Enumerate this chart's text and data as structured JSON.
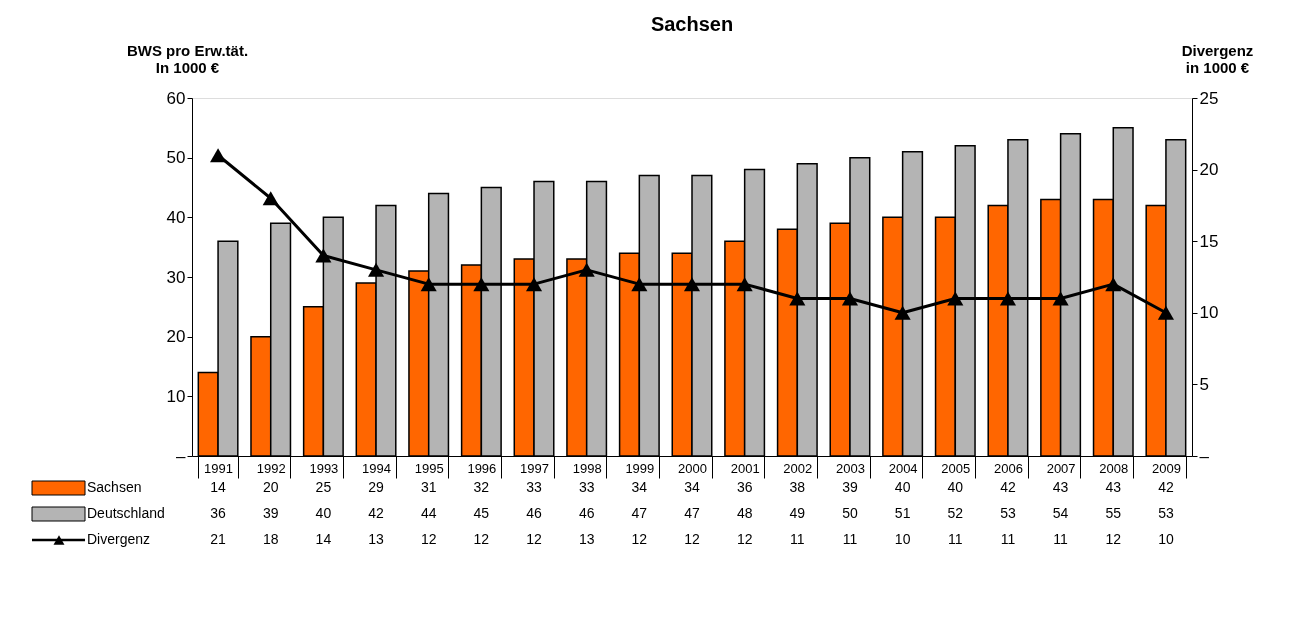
{
  "chart_data": {
    "type": "bar",
    "title": "Sachsen",
    "ylabel": "BWS pro Erw.tät.\nIn 1000 €",
    "y2label": "Divergenz\nin 1000 €",
    "categories": [
      "1991",
      "1992",
      "1993",
      "1994",
      "1995",
      "1996",
      "1997",
      "1998",
      "1999",
      "2000",
      "2001",
      "2002",
      "2003",
      "2004",
      "2005",
      "2006",
      "2007",
      "2008",
      "2009"
    ],
    "series": [
      {
        "name": "Sachsen",
        "color": "#ff6600",
        "values": [
          14,
          20,
          25,
          29,
          31,
          32,
          33,
          33,
          34,
          34,
          36,
          38,
          39,
          40,
          40,
          42,
          43,
          43,
          42
        ]
      },
      {
        "name": "Deutschland",
        "color": "#b4b4b4",
        "values": [
          36,
          39,
          40,
          42,
          44,
          45,
          46,
          46,
          47,
          47,
          48,
          49,
          50,
          51,
          52,
          53,
          54,
          55,
          53
        ]
      },
      {
        "name": "Divergenz",
        "type": "line",
        "axis": "y2",
        "color": "#000000",
        "marker": "triangle",
        "line_style": "solid",
        "values": [
          21,
          18,
          14,
          13,
          12,
          12,
          12,
          13,
          12,
          12,
          12,
          11,
          11,
          10,
          11,
          11,
          11,
          12,
          10
        ]
      }
    ],
    "data_labels": true,
    "ylim": [
      0,
      60
    ],
    "yticks": [
      {
        "value": 0,
        "label": "–"
      },
      10,
      20,
      30,
      40,
      50,
      60
    ],
    "y2lim": [
      0,
      25
    ],
    "y2ticks": [
      {
        "value": 0,
        "label": "–"
      },
      5,
      10,
      15,
      20,
      25
    ],
    "grid": false,
    "legend": "bottom left"
  }
}
